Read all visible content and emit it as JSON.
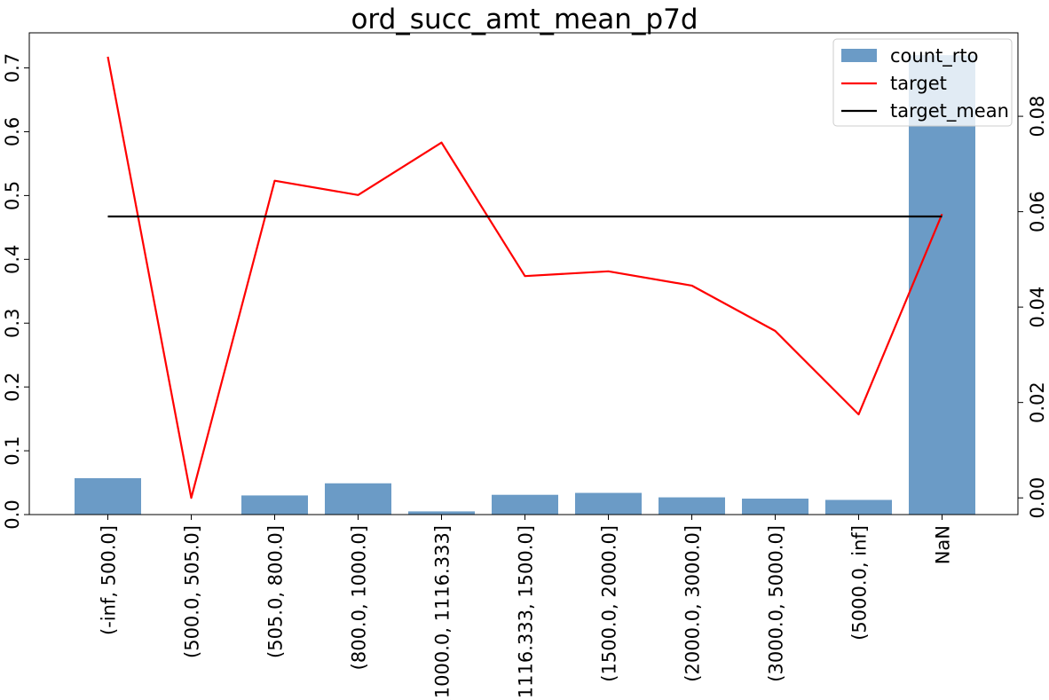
{
  "chart_data": {
    "type": "bar+line",
    "title": "ord_succ_amt_mean_p7d",
    "categories": [
      "(-inf, 500.0]",
      "(500.0, 505.0]",
      "(505.0, 800.0]",
      "(800.0, 1000.0]",
      "(1000.0, 1116.333]",
      "(1116.333, 1500.0]",
      "(1500.0, 2000.0]",
      "(2000.0, 3000.0]",
      "(3000.0, 5000.0]",
      "(5000.0, inf]",
      "NaN"
    ],
    "left_axis": {
      "ylim": [
        0,
        0.755
      ],
      "ticks": [
        "0.0",
        "0.1",
        "0.2",
        "0.3",
        "0.4",
        "0.5",
        "0.6",
        "0.7"
      ],
      "tick_values": [
        0,
        0.1,
        0.2,
        0.3,
        0.4,
        0.5,
        0.6,
        0.7
      ]
    },
    "right_axis": {
      "ylim": [
        -0.0035,
        0.0975
      ],
      "ticks": [
        "0.00",
        "0.02",
        "0.04",
        "0.06",
        "0.08"
      ],
      "tick_values": [
        0,
        0.02,
        0.04,
        0.06,
        0.08
      ]
    },
    "series": [
      {
        "name": "count_rto",
        "kind": "bar",
        "axis": "left",
        "color": "#6b9bc6",
        "values": [
          0.057,
          0.0,
          0.03,
          0.049,
          0.005,
          0.031,
          0.034,
          0.027,
          0.025,
          0.023,
          0.72
        ]
      },
      {
        "name": "target",
        "kind": "line",
        "axis": "right",
        "color": "#ff0000",
        "values": [
          0.0925,
          0.0,
          0.0665,
          0.0635,
          0.0745,
          0.0465,
          0.0475,
          0.0445,
          0.035,
          0.0175,
          0.0595
        ]
      },
      {
        "name": "target_mean",
        "kind": "line",
        "axis": "right",
        "color": "#000000",
        "values": [
          0.059,
          0.059,
          0.059,
          0.059,
          0.059,
          0.059,
          0.059,
          0.059,
          0.059,
          0.059,
          0.059
        ]
      }
    ],
    "legend": {
      "position": "top-right",
      "entries": [
        "count_rto",
        "target",
        "target_mean"
      ]
    },
    "grid": false
  }
}
